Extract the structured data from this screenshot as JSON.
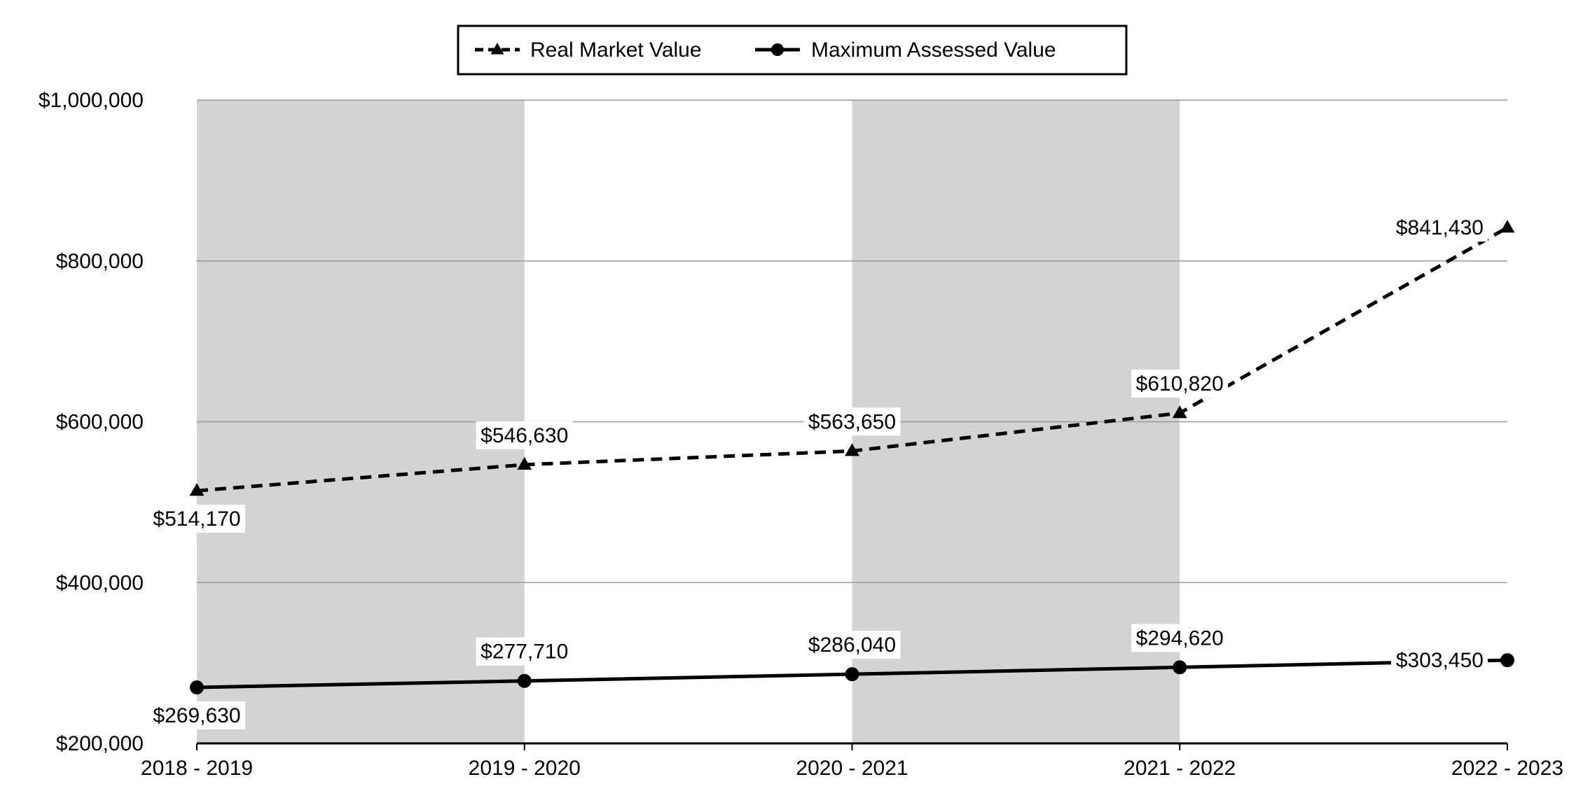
{
  "chart_data": {
    "type": "line",
    "title": "",
    "xlabel": "",
    "ylabel": "",
    "categories": [
      "2018 - 2019",
      "2019 - 2020",
      "2020 - 2021",
      "2021 - 2022",
      "2022 - 2023"
    ],
    "ylim": [
      200000,
      1000000
    ],
    "yticks": [
      200000,
      400000,
      600000,
      800000,
      1000000
    ],
    "ytick_labels": [
      "$200,000",
      "$400,000",
      "$600,000",
      "$800,000",
      "$1,000,000"
    ],
    "grid": true,
    "shaded_bands": [
      "2018 - 2019",
      "2020 - 2021"
    ],
    "legend": {
      "placement": "top-center",
      "entries": [
        "Real Market Value",
        "Maximum Assessed Value"
      ]
    },
    "series": [
      {
        "name": "Real Market Value",
        "values": [
          514170,
          546630,
          563650,
          610820,
          841430
        ],
        "labels": [
          "$514,170",
          "$546,630",
          "$563,650",
          "$610,820",
          "$841,430"
        ],
        "line_style": "dashed",
        "marker": "triangle",
        "color": "#000000"
      },
      {
        "name": "Maximum Assessed Value",
        "values": [
          269630,
          277710,
          286040,
          294620,
          303450
        ],
        "labels": [
          "$269,630",
          "$277,710",
          "$286,040",
          "$294,620",
          "$303,450"
        ],
        "line_style": "solid",
        "marker": "circle",
        "color": "#000000"
      }
    ],
    "band_color": "#d3d3d3",
    "gridline_color": "#999999"
  }
}
